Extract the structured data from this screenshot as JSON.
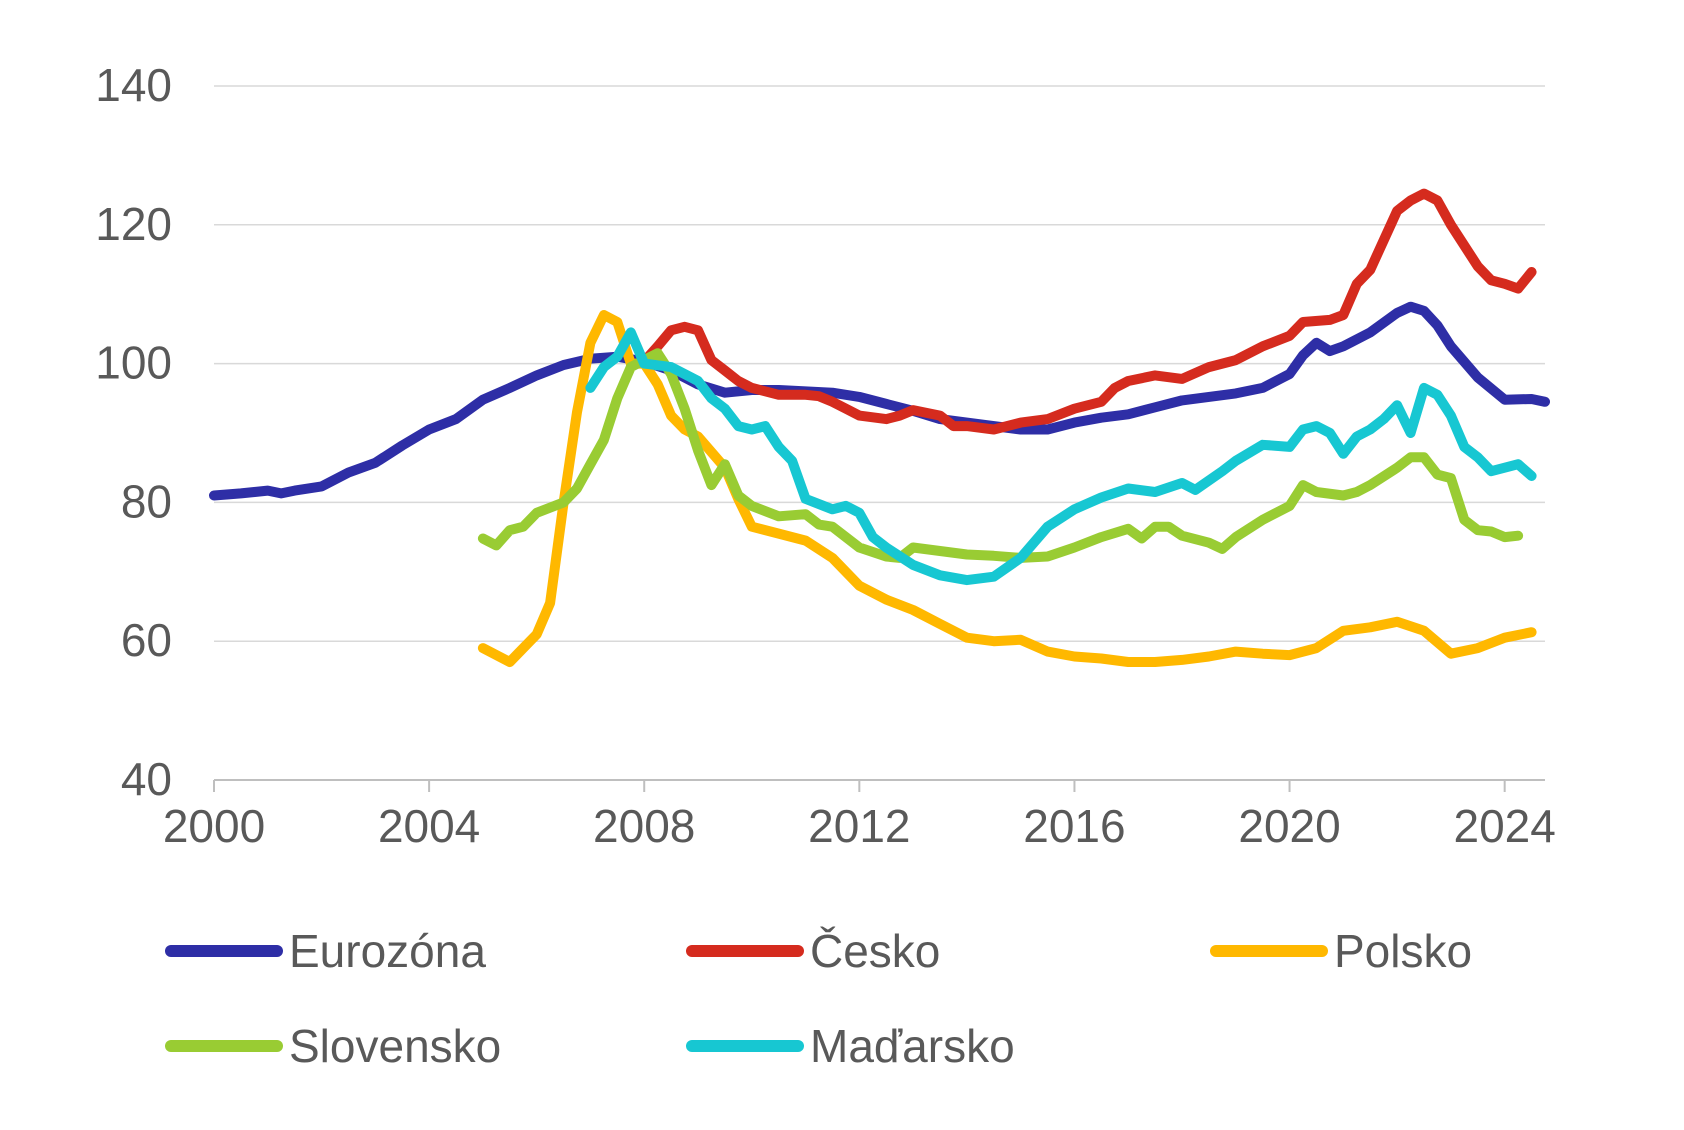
{
  "chart_data": {
    "type": "line",
    "title": "",
    "xlabel": "",
    "ylabel": "",
    "xlim": [
      2000,
      2024.75
    ],
    "ylim": [
      40,
      140
    ],
    "yticks": [
      40,
      60,
      80,
      100,
      120,
      140
    ],
    "xticks": [
      2000,
      2004,
      2008,
      2012,
      2016,
      2020,
      2024
    ],
    "ytick_labels": [
      "40",
      "60",
      "80",
      "100",
      "120",
      "140"
    ],
    "xtick_labels": [
      "2000",
      "2004",
      "2008",
      "2012",
      "2016",
      "2020",
      "2024"
    ],
    "grid": "horizontal",
    "legend_position": "bottom",
    "series": [
      {
        "name": "Eurozóna",
        "color": "#2E2EA6",
        "points": [
          [
            2000,
            81
          ],
          [
            2000.5,
            81.3
          ],
          [
            2001,
            81.7
          ],
          [
            2001.25,
            81.3
          ],
          [
            2001.5,
            81.7
          ],
          [
            2002,
            82.3
          ],
          [
            2002.5,
            84.3
          ],
          [
            2003,
            85.7
          ],
          [
            2003.5,
            88.2
          ],
          [
            2004,
            90.5
          ],
          [
            2004.5,
            92.0
          ],
          [
            2005,
            94.8
          ],
          [
            2005.5,
            96.5
          ],
          [
            2006,
            98.3
          ],
          [
            2006.5,
            99.8
          ],
          [
            2007,
            100.7
          ],
          [
            2007.5,
            101.0
          ],
          [
            2008,
            100.3
          ],
          [
            2008.5,
            99.0
          ],
          [
            2009,
            97.0
          ],
          [
            2009.5,
            95.8
          ],
          [
            2010,
            96.2
          ],
          [
            2010.5,
            96.2
          ],
          [
            2011,
            96.0
          ],
          [
            2011.5,
            95.8
          ],
          [
            2012,
            95.2
          ],
          [
            2012.5,
            94.2
          ],
          [
            2013,
            93.2
          ],
          [
            2013.5,
            92.0
          ],
          [
            2014,
            91.5
          ],
          [
            2014.5,
            91.0
          ],
          [
            2015,
            90.5
          ],
          [
            2015.5,
            90.5
          ],
          [
            2016,
            91.5
          ],
          [
            2016.5,
            92.2
          ],
          [
            2017,
            92.7
          ],
          [
            2017.5,
            93.7
          ],
          [
            2018,
            94.7
          ],
          [
            2018.5,
            95.2
          ],
          [
            2019,
            95.7
          ],
          [
            2019.5,
            96.5
          ],
          [
            2020,
            98.5
          ],
          [
            2020.25,
            101.2
          ],
          [
            2020.5,
            103.0
          ],
          [
            2020.75,
            101.8
          ],
          [
            2021,
            102.5
          ],
          [
            2021.5,
            104.5
          ],
          [
            2022,
            107.3
          ],
          [
            2022.25,
            108.2
          ],
          [
            2022.5,
            107.6
          ],
          [
            2022.75,
            105.5
          ],
          [
            2023,
            102.5
          ],
          [
            2023.5,
            98.0
          ],
          [
            2024,
            94.8
          ],
          [
            2024.5,
            94.9
          ],
          [
            2024.75,
            94.5
          ]
        ]
      },
      {
        "name": "Česko",
        "color": "#D52B1E",
        "points": [
          [
            2008,
            100.3
          ],
          [
            2008.25,
            102.5
          ],
          [
            2008.5,
            104.8
          ],
          [
            2008.75,
            105.3
          ],
          [
            2009,
            104.8
          ],
          [
            2009.25,
            100.5
          ],
          [
            2009.5,
            99.0
          ],
          [
            2009.75,
            97.5
          ],
          [
            2010,
            96.5
          ],
          [
            2010.5,
            95.5
          ],
          [
            2011,
            95.5
          ],
          [
            2011.25,
            95.3
          ],
          [
            2011.5,
            94.5
          ],
          [
            2011.75,
            93.5
          ],
          [
            2012,
            92.5
          ],
          [
            2012.5,
            92.0
          ],
          [
            2012.75,
            92.5
          ],
          [
            2013,
            93.3
          ],
          [
            2013.5,
            92.5
          ],
          [
            2013.75,
            91.0
          ],
          [
            2014,
            91.0
          ],
          [
            2014.5,
            90.5
          ],
          [
            2015,
            91.5
          ],
          [
            2015.5,
            92.0
          ],
          [
            2016,
            93.5
          ],
          [
            2016.5,
            94.5
          ],
          [
            2016.75,
            96.5
          ],
          [
            2017,
            97.5
          ],
          [
            2017.5,
            98.3
          ],
          [
            2018,
            97.8
          ],
          [
            2018.5,
            99.5
          ],
          [
            2019,
            100.5
          ],
          [
            2019.5,
            102.5
          ],
          [
            2020,
            104.0
          ],
          [
            2020.25,
            106.0
          ],
          [
            2020.75,
            106.3
          ],
          [
            2021,
            107.0
          ],
          [
            2021.25,
            111.5
          ],
          [
            2021.5,
            113.5
          ],
          [
            2022,
            122.0
          ],
          [
            2022.25,
            123.5
          ],
          [
            2022.5,
            124.5
          ],
          [
            2022.75,
            123.5
          ],
          [
            2023,
            120.0
          ],
          [
            2023.5,
            114.0
          ],
          [
            2023.75,
            112.0
          ],
          [
            2024,
            111.5
          ],
          [
            2024.25,
            110.8
          ],
          [
            2024.5,
            113.2
          ]
        ]
      },
      {
        "name": "Polsko",
        "color": "#FFB800",
        "points": [
          [
            2005,
            59.0
          ],
          [
            2005.5,
            57.0
          ],
          [
            2006,
            61.0
          ],
          [
            2006.25,
            65.5
          ],
          [
            2006.5,
            80.0
          ],
          [
            2006.75,
            93.0
          ],
          [
            2007,
            103.0
          ],
          [
            2007.25,
            107.0
          ],
          [
            2007.5,
            106.0
          ],
          [
            2007.75,
            100.0
          ],
          [
            2008,
            100.0
          ],
          [
            2008.25,
            97.0
          ],
          [
            2008.5,
            92.5
          ],
          [
            2008.75,
            90.5
          ],
          [
            2009,
            89.5
          ],
          [
            2009.5,
            85.0
          ],
          [
            2009.75,
            80.5
          ],
          [
            2010,
            76.5
          ],
          [
            2010.5,
            75.5
          ],
          [
            2011,
            74.5
          ],
          [
            2011.5,
            72.0
          ],
          [
            2012,
            68.0
          ],
          [
            2012.5,
            66.0
          ],
          [
            2013,
            64.5
          ],
          [
            2013.5,
            62.5
          ],
          [
            2014,
            60.5
          ],
          [
            2014.5,
            60.0
          ],
          [
            2015,
            60.2
          ],
          [
            2015.5,
            58.5
          ],
          [
            2016,
            57.8
          ],
          [
            2016.5,
            57.5
          ],
          [
            2017,
            57.0
          ],
          [
            2017.5,
            57.0
          ],
          [
            2018,
            57.3
          ],
          [
            2018.5,
            57.8
          ],
          [
            2019,
            58.5
          ],
          [
            2019.5,
            58.2
          ],
          [
            2020,
            58.0
          ],
          [
            2020.5,
            59.0
          ],
          [
            2021,
            61.5
          ],
          [
            2021.5,
            62.0
          ],
          [
            2022,
            62.8
          ],
          [
            2022.5,
            61.5
          ],
          [
            2023,
            58.2
          ],
          [
            2023.5,
            59.0
          ],
          [
            2024,
            60.5
          ],
          [
            2024.5,
            61.3
          ]
        ]
      },
      {
        "name": "Slovensko",
        "color": "#99CC33",
        "points": [
          [
            2005,
            74.8
          ],
          [
            2005.25,
            73.8
          ],
          [
            2005.5,
            76.0
          ],
          [
            2005.75,
            76.5
          ],
          [
            2006,
            78.5
          ],
          [
            2006.5,
            80.0
          ],
          [
            2006.75,
            82.0
          ],
          [
            2007,
            85.5
          ],
          [
            2007.25,
            89.0
          ],
          [
            2007.5,
            95.0
          ],
          [
            2007.75,
            99.5
          ],
          [
            2008,
            100.5
          ],
          [
            2008.25,
            101.5
          ],
          [
            2008.5,
            98.5
          ],
          [
            2008.75,
            93.5
          ],
          [
            2009,
            87.5
          ],
          [
            2009.25,
            82.5
          ],
          [
            2009.5,
            85.5
          ],
          [
            2009.75,
            81.0
          ],
          [
            2010,
            79.5
          ],
          [
            2010.5,
            78.0
          ],
          [
            2011,
            78.3
          ],
          [
            2011.25,
            76.8
          ],
          [
            2011.5,
            76.5
          ],
          [
            2012,
            73.5
          ],
          [
            2012.5,
            72.2
          ],
          [
            2012.75,
            72.0
          ],
          [
            2013,
            73.5
          ],
          [
            2013.5,
            73.0
          ],
          [
            2014,
            72.5
          ],
          [
            2014.5,
            72.3
          ],
          [
            2015,
            72.0
          ],
          [
            2015.5,
            72.2
          ],
          [
            2016,
            73.5
          ],
          [
            2016.5,
            75.0
          ],
          [
            2017,
            76.2
          ],
          [
            2017.25,
            74.8
          ],
          [
            2017.5,
            76.5
          ],
          [
            2017.75,
            76.5
          ],
          [
            2018,
            75.2
          ],
          [
            2018.5,
            74.2
          ],
          [
            2018.75,
            73.3
          ],
          [
            2019,
            75.0
          ],
          [
            2019.5,
            77.5
          ],
          [
            2020,
            79.5
          ],
          [
            2020.25,
            82.5
          ],
          [
            2020.5,
            81.5
          ],
          [
            2021,
            81.0
          ],
          [
            2021.25,
            81.5
          ],
          [
            2021.5,
            82.5
          ],
          [
            2022,
            85.0
          ],
          [
            2022.25,
            86.5
          ],
          [
            2022.5,
            86.5
          ],
          [
            2022.75,
            84.0
          ],
          [
            2023,
            83.5
          ],
          [
            2023.25,
            77.5
          ],
          [
            2023.5,
            76.0
          ],
          [
            2023.75,
            75.8
          ],
          [
            2024,
            75.0
          ],
          [
            2024.25,
            75.2
          ]
        ]
      },
      {
        "name": "Maďarsko",
        "color": "#17C7D2",
        "points": [
          [
            2007,
            96.5
          ],
          [
            2007.25,
            99.5
          ],
          [
            2007.5,
            101.0
          ],
          [
            2007.75,
            104.5
          ],
          [
            2008,
            100.0
          ],
          [
            2008.5,
            99.5
          ],
          [
            2009,
            97.5
          ],
          [
            2009.25,
            95.0
          ],
          [
            2009.5,
            93.5
          ],
          [
            2009.75,
            91.0
          ],
          [
            2010,
            90.5
          ],
          [
            2010.25,
            91.0
          ],
          [
            2010.5,
            88.0
          ],
          [
            2010.75,
            86.0
          ],
          [
            2011,
            80.5
          ],
          [
            2011.5,
            79.0
          ],
          [
            2011.75,
            79.5
          ],
          [
            2012,
            78.5
          ],
          [
            2012.25,
            75.0
          ],
          [
            2012.5,
            73.5
          ],
          [
            2013,
            71.0
          ],
          [
            2013.5,
            69.5
          ],
          [
            2014,
            68.8
          ],
          [
            2014.5,
            69.3
          ],
          [
            2015,
            72.0
          ],
          [
            2015.5,
            76.5
          ],
          [
            2016,
            79.0
          ],
          [
            2016.5,
            80.7
          ],
          [
            2017,
            82.0
          ],
          [
            2017.5,
            81.5
          ],
          [
            2018,
            82.8
          ],
          [
            2018.25,
            81.8
          ],
          [
            2018.75,
            84.5
          ],
          [
            2019,
            86.0
          ],
          [
            2019.5,
            88.3
          ],
          [
            2020,
            88.0
          ],
          [
            2020.25,
            90.5
          ],
          [
            2020.5,
            91.0
          ],
          [
            2020.75,
            90.0
          ],
          [
            2021,
            87.0
          ],
          [
            2021.25,
            89.5
          ],
          [
            2021.5,
            90.5
          ],
          [
            2021.75,
            92.0
          ],
          [
            2022,
            94.0
          ],
          [
            2022.25,
            90.0
          ],
          [
            2022.5,
            96.5
          ],
          [
            2022.75,
            95.5
          ],
          [
            2023,
            92.5
          ],
          [
            2023.25,
            88.0
          ],
          [
            2023.5,
            86.5
          ],
          [
            2023.75,
            84.5
          ],
          [
            2024,
            85.0
          ],
          [
            2024.25,
            85.5
          ],
          [
            2024.5,
            83.8
          ]
        ]
      }
    ]
  }
}
